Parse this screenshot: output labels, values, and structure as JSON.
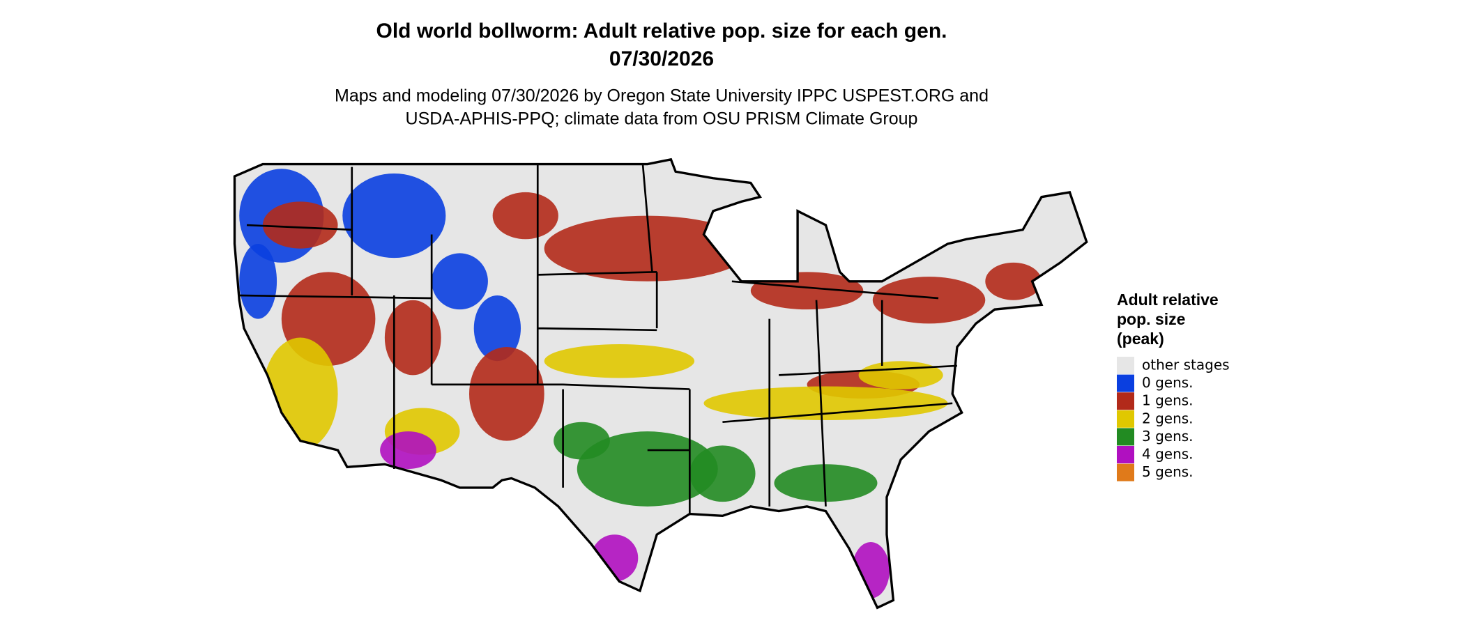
{
  "title": {
    "line1": "Old world bollworm: Adult relative pop. size for each gen.",
    "line2": "07/30/2026"
  },
  "subtitle": {
    "line1": "Maps and modeling 07/30/2026 by Oregon State University IPPC USPEST.ORG and",
    "line2": "USDA-APHIS-PPQ; climate data from OSU PRISM Climate Group"
  },
  "legend": {
    "title_lines": [
      "Adult relative",
      "pop. size",
      "(peak)"
    ],
    "items": [
      {
        "label": "other stages",
        "color": "#e6e6e6"
      },
      {
        "label": "0 gens.",
        "color": "#0a3fe0"
      },
      {
        "label": "1 gens.",
        "color": "#b22a1a"
      },
      {
        "label": "2 gens.",
        "color": "#e0c800"
      },
      {
        "label": "3 gens.",
        "color": "#228b22"
      },
      {
        "label": "4 gens.",
        "color": "#b010c0"
      },
      {
        "label": "5 gens.",
        "color": "#e07a1a"
      }
    ]
  }
}
